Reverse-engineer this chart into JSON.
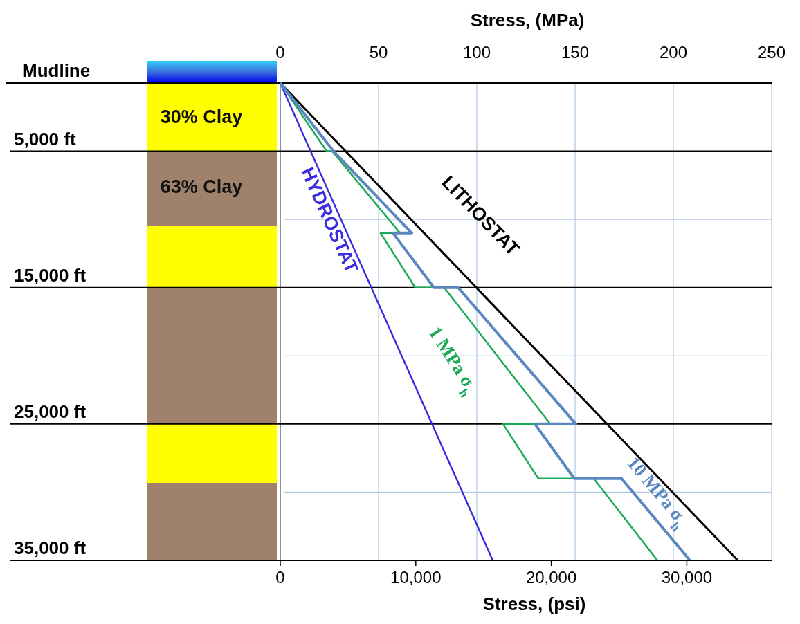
{
  "chart_data": {
    "type": "line",
    "xlabel": "Stress, (psi)",
    "x2label": "Stress, (MPa)",
    "xlim": [
      0,
      36260
    ],
    "xticks": [
      {
        "value": 0,
        "label": "0"
      },
      {
        "value": 10000,
        "label": "10,000"
      },
      {
        "value": 20000,
        "label": "20,000"
      },
      {
        "value": 30000,
        "label": "30,000"
      }
    ],
    "x2lim": [
      0,
      250
    ],
    "x2ticks": [
      {
        "value": 0,
        "label": "0"
      },
      {
        "value": 50,
        "label": "50"
      },
      {
        "value": 100,
        "label": "100"
      },
      {
        "value": 150,
        "label": "150"
      },
      {
        "value": 200,
        "label": "200"
      },
      {
        "value": 250,
        "label": "250"
      }
    ],
    "ylim": [
      35000,
      0
    ],
    "yticks": [
      {
        "value": 10000,
        "label": null
      },
      {
        "value": 20000,
        "label": null
      },
      {
        "value": 30000,
        "label": null
      }
    ],
    "annotations": [
      "30% Clay",
      "63% Clay"
    ],
    "grid": true,
    "line_style": "solid",
    "marker": "none",
    "ref_lines": [
      {
        "axis": "y",
        "value": 0,
        "label": "Mudline",
        "color": "#000000"
      },
      {
        "axis": "y",
        "value": 5000,
        "label": "5,000 ft",
        "color": "#000000"
      },
      {
        "axis": "y",
        "value": 15000,
        "label": "15,000 ft",
        "color": "#000000"
      },
      {
        "axis": "y",
        "value": 25000,
        "label": "25,000 ft",
        "color": "#000000"
      },
      {
        "axis": "y",
        "value": 35000,
        "label": "35,000 ft",
        "color": "#000000"
      }
    ],
    "series": [
      {
        "name": "LITHOSTAT",
        "color": "#000000",
        "x": [
          0,
          33760
        ],
        "values": [
          0,
          35000
        ]
      },
      {
        "name": "HYDROSTAT",
        "color": "#3a2de0",
        "x": [
          0,
          15680
        ],
        "values": [
          0,
          35000
        ]
      },
      {
        "name": "1 MPa σ$_{h}$",
        "color": "#1aaa55",
        "x": [
          0,
          3420,
          3830,
          8840,
          7400,
          9960,
          12100,
          19920,
          16440,
          19050,
          23130,
          27830
        ],
        "values": [
          0,
          5000,
          5000,
          11000,
          11000,
          15000,
          15000,
          25000,
          25000,
          29000,
          29000,
          35000
        ]
      },
      {
        "name": "10 MPa σ$_{h}$",
        "color": "#5a87c0",
        "x": [
          0,
          3930,
          9700,
          8320,
          11340,
          13130,
          21810,
          18790,
          21700,
          25180,
          30230
        ],
        "values": [
          0,
          5000,
          11000,
          11000,
          15000,
          15000,
          25000,
          25000,
          29000,
          29000,
          35000
        ]
      }
    ]
  }
}
